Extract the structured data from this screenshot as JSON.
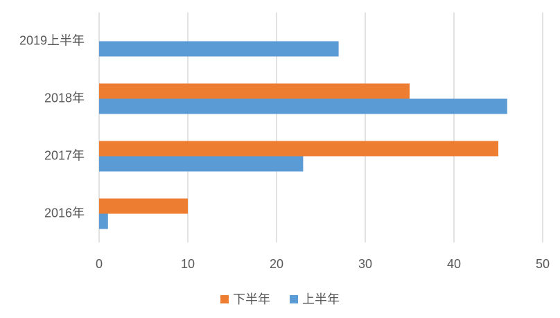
{
  "chart_data": {
    "type": "horizontal-bar",
    "categories": [
      "2016年",
      "2017年",
      "2018年",
      "2019上半年"
    ],
    "series": [
      {
        "name": "下半年",
        "color": "#ed7d31",
        "values": [
          10,
          45,
          35,
          null
        ]
      },
      {
        "name": "上半年",
        "color": "#5b9bd5",
        "values": [
          1,
          23,
          46,
          27
        ]
      }
    ],
    "xlim": [
      0,
      50
    ],
    "xticks": [
      0,
      10,
      20,
      30,
      40,
      50
    ],
    "grid": true,
    "legend": "bottom"
  }
}
